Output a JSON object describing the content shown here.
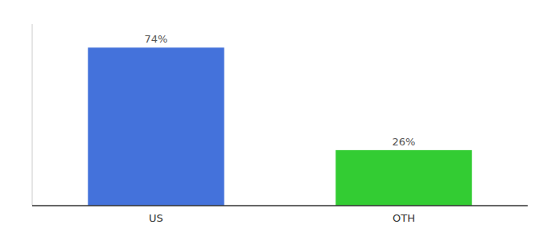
{
  "chart_data": {
    "type": "bar",
    "categories": [
      "US",
      "OTH"
    ],
    "values": [
      74,
      26
    ],
    "colors": [
      "#4472db",
      "#33cc33"
    ],
    "ylim": [
      0,
      85
    ],
    "data_labels": true,
    "value_labels": [
      "74%",
      "26%"
    ],
    "tick_labels": "x"
  }
}
